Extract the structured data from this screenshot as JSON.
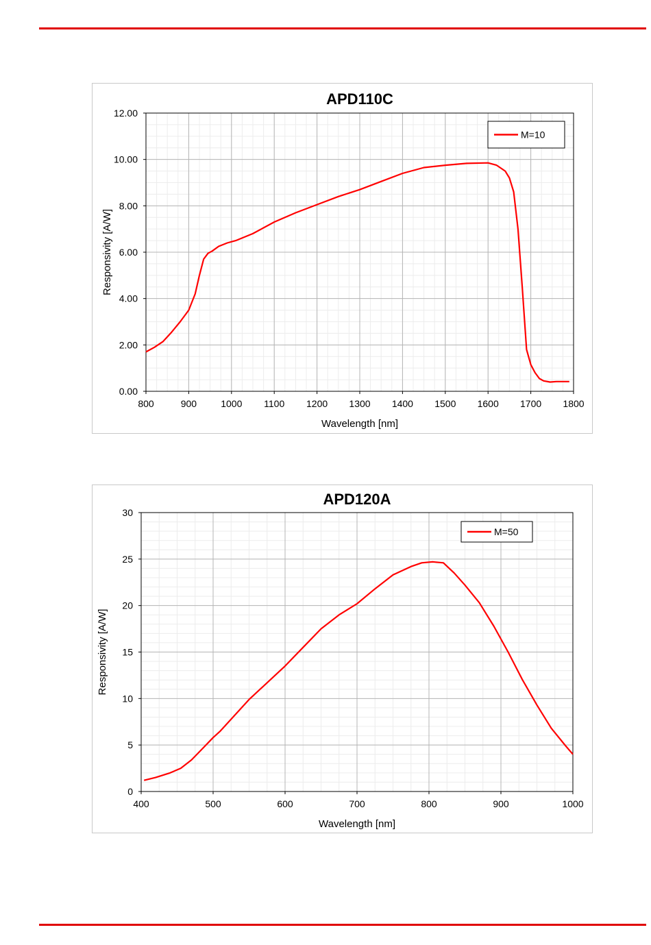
{
  "page": {
    "rule_color": "#e00000"
  },
  "chart_data": [
    {
      "type": "line",
      "title": "APD110C",
      "xlabel": "Wavelength  [nm]",
      "ylabel": "Responsivity  [A/W]",
      "xlim": [
        800,
        1800
      ],
      "ylim": [
        0,
        12
      ],
      "xticks": [
        800,
        900,
        1000,
        1100,
        1200,
        1300,
        1400,
        1500,
        1600,
        1700,
        1800
      ],
      "xtick_labels": [
        "800",
        "900",
        "1000",
        "1100",
        "1200",
        "1300",
        "1400",
        "1500",
        "1600",
        "1700",
        "1800"
      ],
      "yticks": [
        0,
        2,
        4,
        6,
        8,
        10,
        12
      ],
      "ytick_labels": [
        "0.00",
        "2.00",
        "4.00",
        "6.00",
        "8.00",
        "10.00",
        "12.00"
      ],
      "x_minor_step": 25,
      "y_minor_step": 0.5,
      "grid": true,
      "legend_position": "top-right",
      "series_color": "#ff0000",
      "series": [
        {
          "name": "M=10",
          "x": [
            800,
            820,
            840,
            860,
            880,
            900,
            915,
            925,
            935,
            945,
            955,
            970,
            990,
            1010,
            1050,
            1100,
            1150,
            1200,
            1250,
            1300,
            1350,
            1400,
            1450,
            1500,
            1550,
            1600,
            1620,
            1640,
            1650,
            1660,
            1670,
            1680,
            1690,
            1700,
            1710,
            1720,
            1730,
            1745,
            1760,
            1780,
            1790
          ],
          "y": [
            1.7,
            1.9,
            2.15,
            2.55,
            3.0,
            3.5,
            4.2,
            5.0,
            5.7,
            5.95,
            6.05,
            6.25,
            6.4,
            6.5,
            6.8,
            7.3,
            7.7,
            8.05,
            8.4,
            8.7,
            9.05,
            9.4,
            9.65,
            9.75,
            9.83,
            9.85,
            9.75,
            9.5,
            9.2,
            8.6,
            7.0,
            4.5,
            1.8,
            1.15,
            0.8,
            0.55,
            0.45,
            0.4,
            0.42,
            0.42,
            0.42
          ]
        }
      ]
    },
    {
      "type": "line",
      "title": "APD120A",
      "xlabel": "Wavelength  [nm]",
      "ylabel": "Responsivity  [A/W]",
      "xlim": [
        400,
        1000
      ],
      "ylim": [
        0,
        30
      ],
      "xticks": [
        400,
        500,
        600,
        700,
        800,
        900,
        1000
      ],
      "xtick_labels": [
        "400",
        "500",
        "600",
        "700",
        "800",
        "900",
        "1000"
      ],
      "yticks": [
        0,
        5,
        10,
        15,
        20,
        25,
        30
      ],
      "ytick_labels": [
        "0",
        "5",
        "10",
        "15",
        "20",
        "25",
        "30"
      ],
      "x_minor_step": 25,
      "y_minor_step": 1,
      "grid": true,
      "legend_position": "top-right",
      "series_color": "#ff0000",
      "series": [
        {
          "name": "M=50",
          "x": [
            404,
            420,
            440,
            455,
            470,
            485,
            500,
            510,
            530,
            550,
            575,
            600,
            625,
            650,
            675,
            700,
            725,
            750,
            775,
            790,
            805,
            820,
            835,
            850,
            870,
            890,
            910,
            930,
            950,
            970,
            990,
            1000
          ],
          "y": [
            1.2,
            1.5,
            2.0,
            2.5,
            3.4,
            4.6,
            5.8,
            6.5,
            8.2,
            9.9,
            11.7,
            13.5,
            15.5,
            17.5,
            19.0,
            20.2,
            21.8,
            23.3,
            24.2,
            24.6,
            24.7,
            24.6,
            23.5,
            22.2,
            20.3,
            17.8,
            15.0,
            12.0,
            9.3,
            6.8,
            4.9,
            4.0
          ]
        }
      ]
    }
  ]
}
